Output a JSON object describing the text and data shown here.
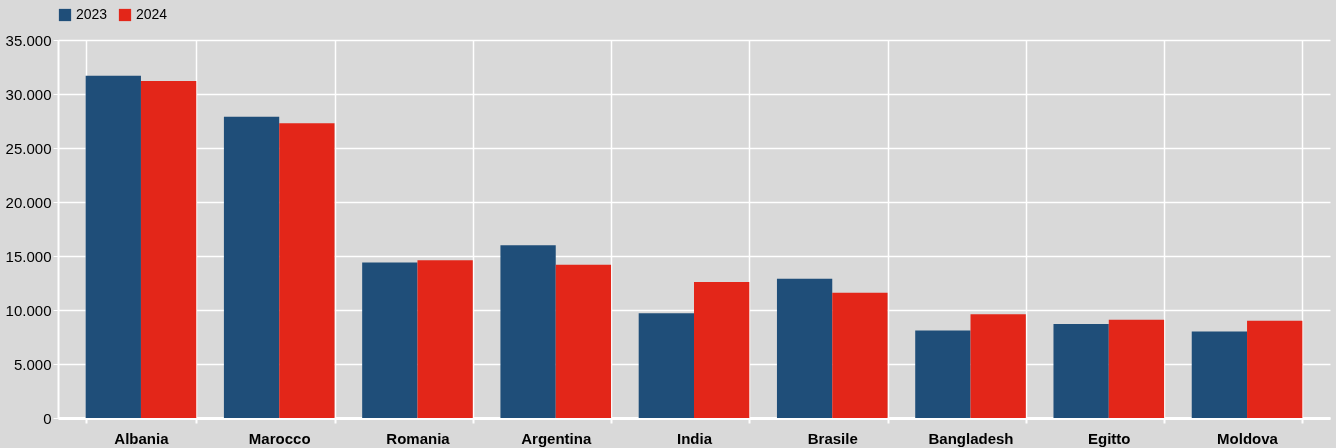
{
  "chart_data": {
    "type": "bar",
    "categories": [
      "Albania",
      "Marocco",
      "Romania",
      "Argentina",
      "India",
      "Brasile",
      "Bangladesh",
      "Egitto",
      "Moldova"
    ],
    "series": [
      {
        "name": "2023",
        "color": "#1f4e79",
        "values": [
          31700,
          27900,
          14400,
          16000,
          9700,
          12900,
          8100,
          8700,
          8000
        ]
      },
      {
        "name": "2024",
        "color": "#e32619",
        "values": [
          31200,
          27300,
          14600,
          14200,
          12600,
          11600,
          9600,
          9100,
          9000
        ]
      }
    ],
    "ylim": [
      0,
      35000
    ],
    "yticks": [
      0,
      {
        "value": 5000,
        "label": "5.000"
      },
      {
        "value": 10000,
        "label": "10.000"
      },
      {
        "value": 15000,
        "label": "15.000"
      },
      {
        "value": 20000,
        "label": "20.000"
      },
      {
        "value": 25000,
        "label": "25.000"
      },
      {
        "value": 30000,
        "label": "30.000"
      },
      {
        "value": 35000,
        "label": "35.000"
      }
    ],
    "grid": true,
    "legend": "top"
  }
}
